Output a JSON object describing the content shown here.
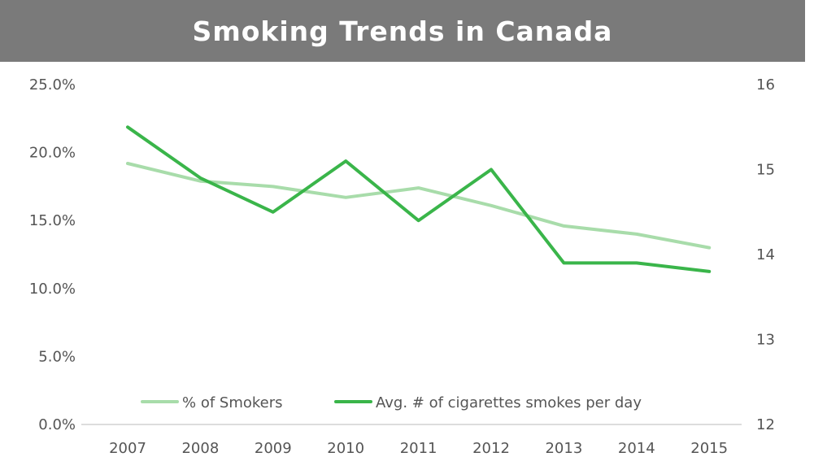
{
  "chart_data": {
    "type": "line",
    "title": "Smoking Trends in Canada",
    "categories": [
      "2007",
      "2008",
      "2009",
      "2010",
      "2011",
      "2012",
      "2013",
      "2014",
      "2015"
    ],
    "y_left": {
      "ylim": [
        0,
        25
      ],
      "ticks": [
        "0.0%",
        "5.0%",
        "10.0%",
        "15.0%",
        "20.0%",
        "25.0%"
      ]
    },
    "y_right": {
      "ylim": [
        12,
        16
      ],
      "ticks": [
        "12",
        "13",
        "14",
        "15",
        "16"
      ]
    },
    "series": [
      {
        "name": "% of Smokers",
        "axis": "left",
        "color": "#a8dcaa",
        "values": [
          19.2,
          17.9,
          17.5,
          16.7,
          17.4,
          16.1,
          14.6,
          14.0,
          13.0
        ]
      },
      {
        "name": "Avg. # of cigarettes smokes per day",
        "axis": "right",
        "color": "#3ab54a",
        "values": [
          15.5,
          14.9,
          14.5,
          15.1,
          14.4,
          15.0,
          13.9,
          13.9,
          13.8
        ]
      }
    ],
    "grid": false,
    "legend_position": "bottom-center"
  }
}
